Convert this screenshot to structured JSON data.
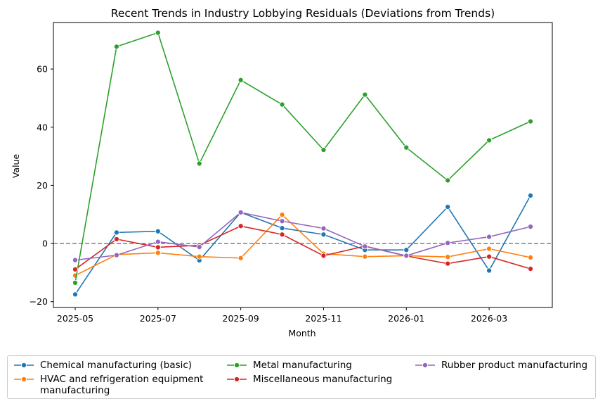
{
  "chart_data": {
    "type": "line",
    "title": "Recent Trends in Industry Lobbying Residuals (Deviations from Trends)",
    "xlabel": "Month",
    "ylabel": "Value",
    "x": [
      "2025-05",
      "2025-06",
      "2025-07",
      "2025-08",
      "2025-09",
      "2025-10",
      "2025-11",
      "2025-12",
      "2026-01",
      "2026-02",
      "2026-03",
      "2026-04"
    ],
    "x_tick_labels": [
      "2025-05",
      "2025-07",
      "2025-09",
      "2025-11",
      "2026-01",
      "2026-03"
    ],
    "y_ticks": [
      -20,
      0,
      20,
      40,
      60
    ],
    "ylim": [
      -22,
      76
    ],
    "reference_line": {
      "y": 0,
      "style": "dashed",
      "color": "#808080"
    },
    "grid": false,
    "legend_position": "bottom",
    "series": [
      {
        "name": "Chemical manufacturing (basic)",
        "color": "#1f77b4",
        "values": [
          -17.5,
          3.8,
          4.2,
          -5.8,
          10.7,
          5.3,
          3.1,
          -2.2,
          -2.2,
          12.6,
          -9.3,
          16.5
        ]
      },
      {
        "name": "HVAC and refrigeration equipment manufacturing",
        "color": "#ff7f0e",
        "values": [
          -11,
          -3.8,
          -3.2,
          -4.5,
          -5,
          9.9,
          -3.5,
          -4.5,
          -4.2,
          -4.6,
          -1.8,
          -4.8
        ]
      },
      {
        "name": "Metal manufacturing",
        "color": "#2ca02c",
        "values": [
          -13.5,
          67.7,
          72.5,
          27.5,
          56.2,
          47.8,
          32.2,
          51.2,
          33,
          21.7,
          35.5,
          42
        ]
      },
      {
        "name": "Miscellaneous manufacturing",
        "color": "#d62728",
        "values": [
          -8.9,
          1.5,
          -1.3,
          -0.6,
          6,
          3.1,
          -4.2,
          -0.9,
          -4.3,
          -6.9,
          -4.5,
          -8.7
        ]
      },
      {
        "name": "Rubber product manufacturing",
        "color": "#9467bd",
        "values": [
          -5.7,
          -4,
          0.6,
          -1.2,
          10.7,
          7.7,
          5.2,
          -1,
          -4.2,
          0.2,
          2.3,
          5.8
        ]
      }
    ]
  }
}
